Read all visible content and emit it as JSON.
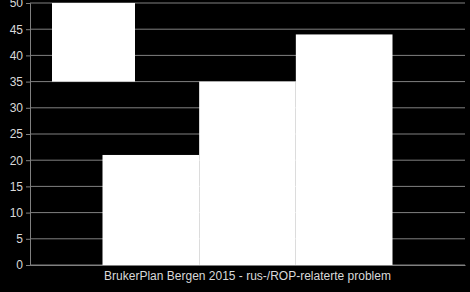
{
  "chart_data": {
    "type": "bar",
    "categories": [
      "BrukerPlan Bergen 2015 - rus-/ROP-relaterte problem"
    ],
    "series": [
      {
        "color": "#ffffff",
        "values": [
          21
        ]
      },
      {
        "color": "#ffffff",
        "values": [
          35
        ]
      },
      {
        "color": "#ffffff",
        "values": [
          44
        ]
      }
    ],
    "ylim": [
      0,
      50
    ],
    "yticks": [
      0,
      5,
      10,
      15,
      20,
      25,
      30,
      35,
      40,
      45,
      50
    ],
    "grid": true
  }
}
